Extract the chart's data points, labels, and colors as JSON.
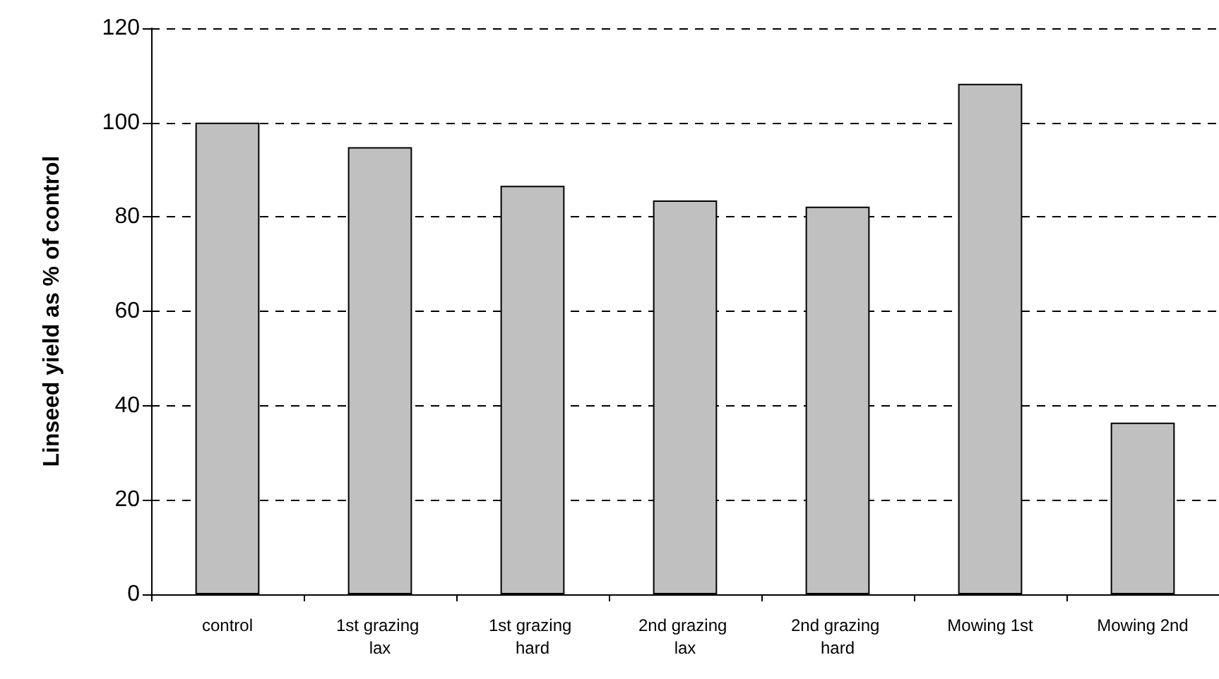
{
  "chart_data": {
    "type": "bar",
    "ylabel": "Linseed yield as % of control",
    "categories": [
      "control",
      "1st grazing lax",
      "1st grazing hard",
      "2nd grazing lax",
      "2nd grazing hard",
      "Mowing 1st",
      "Mowing 2nd"
    ],
    "values": [
      100,
      94.8,
      86.6,
      83.5,
      82.2,
      108.2,
      36.4
    ],
    "color": "#c0c0c0",
    "ylim": [
      0,
      120
    ],
    "yticks": [
      0,
      20,
      40,
      60,
      80,
      100,
      120
    ],
    "grid": "y"
  }
}
